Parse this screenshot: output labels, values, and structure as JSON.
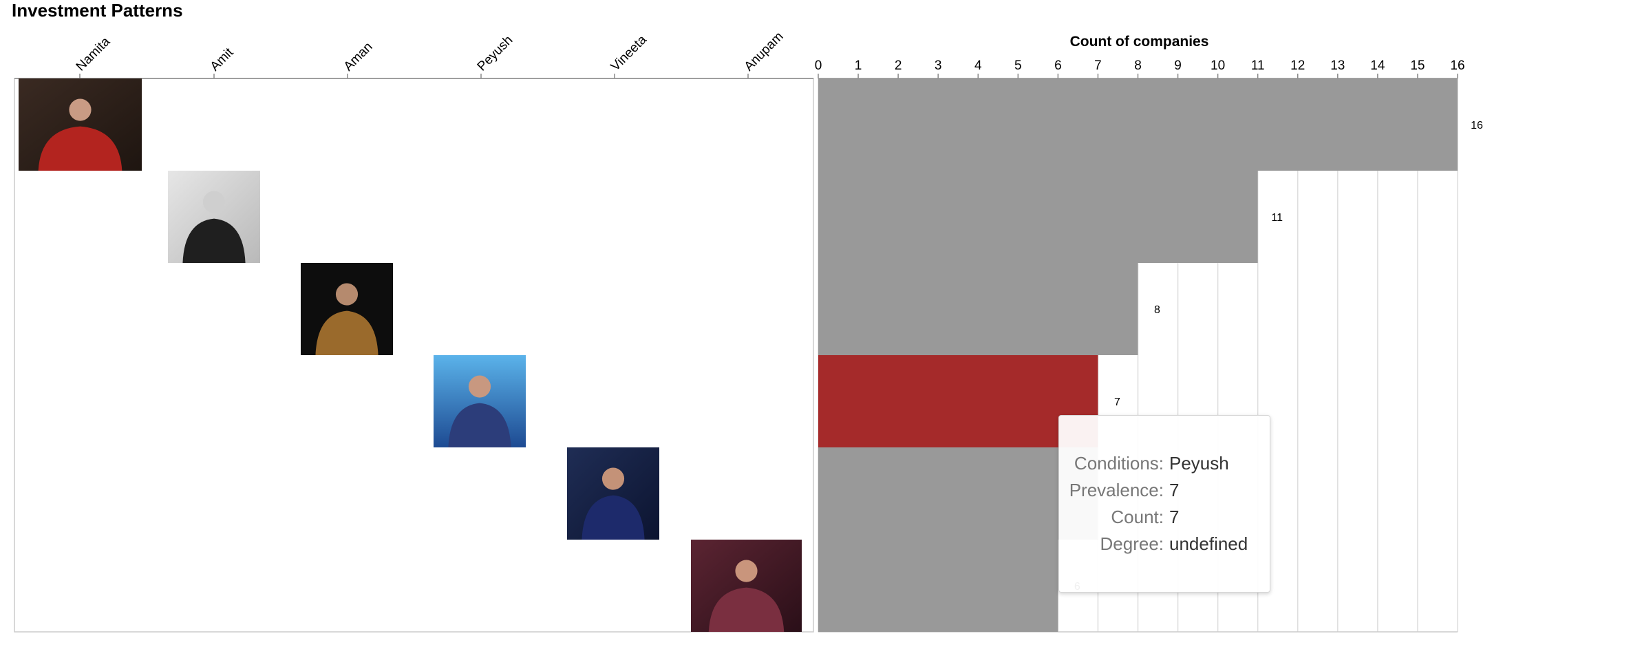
{
  "title": "Investment Patterns",
  "chart_data": {
    "type": "bar",
    "orientation": "horizontal",
    "categories": [
      "Namita",
      "Amit",
      "Aman",
      "Peyush",
      "Vineeta",
      "Anupam"
    ],
    "values": [
      16,
      11,
      8,
      7,
      7,
      6
    ],
    "xlabel": "Count of companies",
    "xlim": [
      0,
      16
    ],
    "x_ticks": [
      "0",
      "1",
      "2",
      "3",
      "4",
      "5",
      "6",
      "7",
      "8",
      "9",
      "10",
      "11",
      "12",
      "13",
      "14",
      "15",
      "16"
    ],
    "data_labels": [
      "16",
      "11",
      "8",
      "7",
      "7",
      "6"
    ],
    "grid": true,
    "highlighted": "Peyush",
    "colors": {
      "bar": "#999999",
      "highlight": "#a52a2a",
      "grid": "#dddddd",
      "axis": "#888888"
    },
    "matrix": {
      "columns": [
        "Namita",
        "Amit",
        "Aman",
        "Peyush",
        "Vineeta",
        "Anupam"
      ],
      "rows": [
        "Namita",
        "Amit",
        "Aman",
        "Peyush",
        "Vineeta",
        "Anupam"
      ],
      "cell_content": "investor photo on the diagonal"
    }
  },
  "tooltip": {
    "rows": [
      {
        "key": "Conditions:",
        "value": "Peyush"
      },
      {
        "key": "Prevalence:",
        "value": "7"
      },
      {
        "key": "Count:",
        "value": "7"
      },
      {
        "key": "Degree:",
        "value": "undefined"
      }
    ]
  }
}
